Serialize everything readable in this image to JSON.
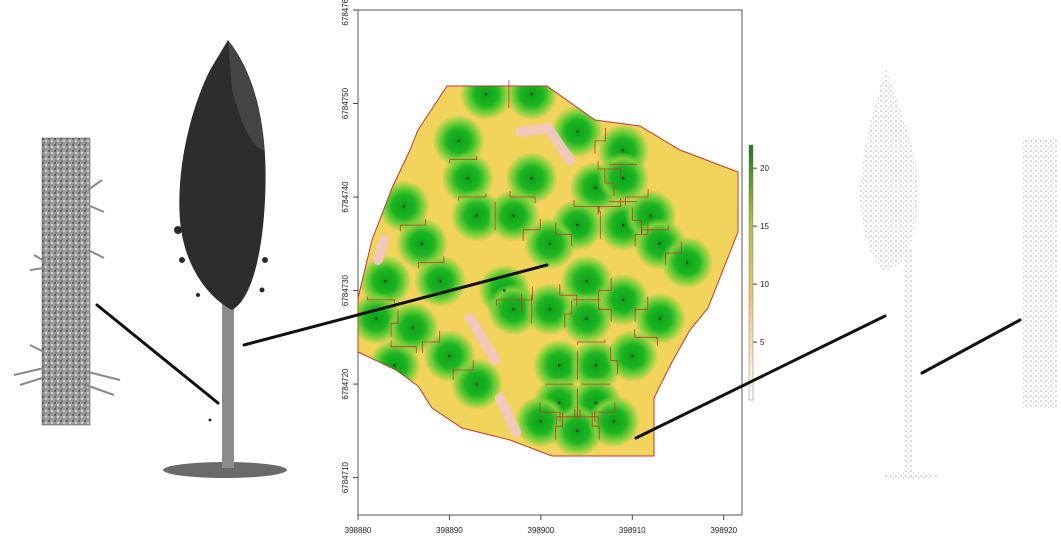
{
  "chart_data": {
    "type": "heatmap",
    "title": "",
    "xlabel": "",
    "ylabel": "",
    "xlim": [
      398880,
      398922
    ],
    "ylim": [
      6784706,
      6784760
    ],
    "x_ticks": [
      "398880",
      "398890",
      "398900",
      "398910",
      "398920"
    ],
    "y_ticks": [
      "6784710",
      "6784720",
      "6784730",
      "6784740",
      "6784750",
      "6784760"
    ],
    "colorbar": {
      "range": [
        0,
        22
      ],
      "ticks": [
        "5",
        "10",
        "15",
        "20"
      ],
      "low_color": "#ffffff",
      "mid_color": "#f4c070",
      "high_color": "#1e7a1e"
    },
    "tree_tops": [
      {
        "x": 398894,
        "y": 6784751
      },
      {
        "x": 398899,
        "y": 6784751
      },
      {
        "x": 398904,
        "y": 6784747
      },
      {
        "x": 398891,
        "y": 6784746
      },
      {
        "x": 398909,
        "y": 6784745
      },
      {
        "x": 398892,
        "y": 6784742
      },
      {
        "x": 398899,
        "y": 6784742
      },
      {
        "x": 398906,
        "y": 6784741
      },
      {
        "x": 398909,
        "y": 6784742
      },
      {
        "x": 398885,
        "y": 6784739
      },
      {
        "x": 398893,
        "y": 6784738
      },
      {
        "x": 398897,
        "y": 6784738
      },
      {
        "x": 398904,
        "y": 6784737
      },
      {
        "x": 398909,
        "y": 6784737
      },
      {
        "x": 398912,
        "y": 6784738
      },
      {
        "x": 398887,
        "y": 6784735
      },
      {
        "x": 398901,
        "y": 6784735
      },
      {
        "x": 398913,
        "y": 6784735
      },
      {
        "x": 398916,
        "y": 6784733
      },
      {
        "x": 398883,
        "y": 6784731
      },
      {
        "x": 398889,
        "y": 6784731
      },
      {
        "x": 398896,
        "y": 6784730
      },
      {
        "x": 398905,
        "y": 6784731
      },
      {
        "x": 398909,
        "y": 6784729
      },
      {
        "x": 398882,
        "y": 6784727
      },
      {
        "x": 398886,
        "y": 6784726
      },
      {
        "x": 398897,
        "y": 6784728
      },
      {
        "x": 398901,
        "y": 6784728
      },
      {
        "x": 398905,
        "y": 6784727
      },
      {
        "x": 398913,
        "y": 6784727
      },
      {
        "x": 398890,
        "y": 6784723
      },
      {
        "x": 398884,
        "y": 6784722
      },
      {
        "x": 398902,
        "y": 6784722
      },
      {
        "x": 398906,
        "y": 6784722
      },
      {
        "x": 398910,
        "y": 6784723
      },
      {
        "x": 398893,
        "y": 6784720
      },
      {
        "x": 398902,
        "y": 6784718
      },
      {
        "x": 398906,
        "y": 6784718
      },
      {
        "x": 398900,
        "y": 6784716
      },
      {
        "x": 398904,
        "y": 6784715
      },
      {
        "x": 398908,
        "y": 6784716
      }
    ]
  }
}
